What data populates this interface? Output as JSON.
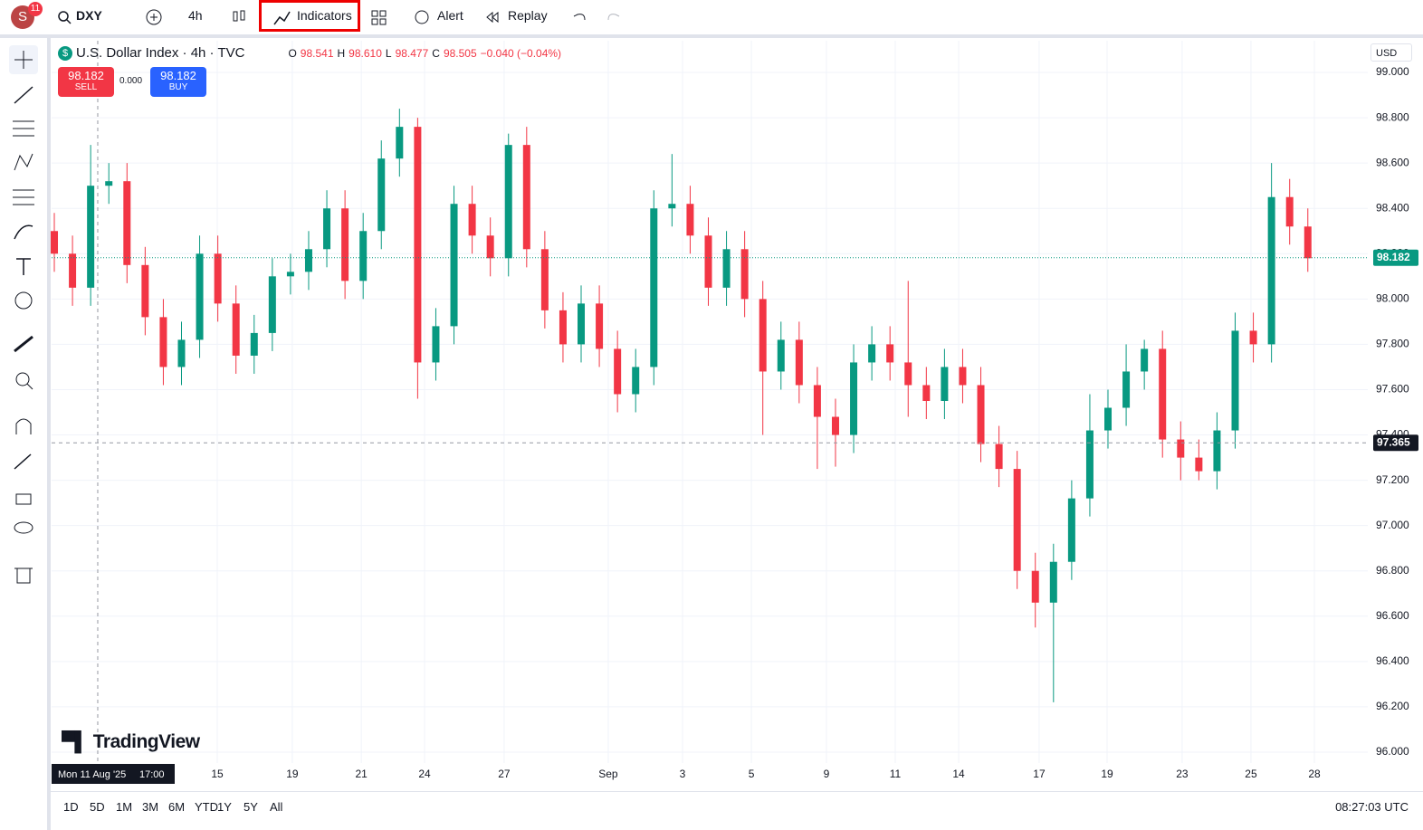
{
  "header": {
    "avatar": "S",
    "badge": "11",
    "symbol": "DXY",
    "interval": "4h",
    "indicators": "Indicators",
    "alert": "Alert",
    "replay": "Replay"
  },
  "legend": {
    "o_label": "O",
    "o": "98.541",
    "h_label": "H",
    "h": "98.610",
    "l_label": "L",
    "l": "98.477",
    "c_label": "C",
    "c": "98.505",
    "change": "−0.040 (−0.04%)"
  },
  "trade": {
    "sell_price": "98.182",
    "sell": "SELL",
    "spread": "0.000",
    "buy_price": "98.182",
    "buy": "BUY"
  },
  "currency": "USD",
  "watermark": "TradingView",
  "ranges": [
    "1D",
    "5D",
    "1M",
    "3M",
    "6M",
    "YTD",
    "1Y",
    "5Y",
    "All"
  ],
  "clock": "08:27:03 UTC",
  "chart_data": {
    "type": "candlestick",
    "title": "U.S. Dollar Index · 4h · TVC",
    "up_color": "#089981",
    "down_color": "#f23645",
    "open": [
      98.3,
      98.2,
      98.05,
      98.5,
      98.52,
      98.15,
      97.92,
      97.7,
      97.82,
      98.2,
      97.98,
      97.75,
      97.85,
      98.1,
      98.12,
      98.22,
      98.4,
      98.08,
      98.3,
      98.62,
      98.76,
      97.72,
      97.88,
      98.42,
      98.28,
      98.18,
      98.68,
      98.22,
      97.95,
      97.8,
      97.98,
      97.78,
      97.58,
      97.7,
      98.4,
      98.42,
      98.28,
      98.05,
      98.22,
      98.0,
      97.68,
      97.82,
      97.62,
      97.48,
      97.4,
      97.72,
      97.8,
      97.72,
      97.62,
      97.55,
      97.7,
      97.62,
      97.36,
      97.25,
      96.8,
      96.66,
      96.84,
      97.12,
      97.42,
      97.52,
      97.68,
      97.78,
      97.38,
      97.3,
      97.24,
      97.42,
      97.86,
      97.8,
      98.45,
      98.32
    ],
    "high": [
      98.38,
      98.28,
      98.68,
      98.6,
      98.6,
      98.23,
      98.0,
      97.9,
      98.28,
      98.28,
      98.06,
      97.93,
      98.18,
      98.2,
      98.3,
      98.48,
      98.48,
      98.38,
      98.7,
      98.84,
      98.8,
      97.96,
      98.5,
      98.5,
      98.36,
      98.73,
      98.76,
      98.3,
      98.03,
      98.06,
      98.06,
      97.86,
      97.78,
      98.48,
      98.64,
      98.5,
      98.36,
      98.3,
      98.3,
      98.08,
      97.9,
      97.9,
      97.7,
      97.56,
      97.8,
      97.88,
      97.88,
      98.08,
      97.7,
      97.78,
      97.78,
      97.7,
      97.44,
      97.33,
      96.88,
      96.92,
      97.2,
      97.58,
      97.6,
      97.8,
      97.82,
      97.86,
      97.46,
      97.38,
      97.5,
      97.94,
      97.94,
      98.6,
      98.53,
      98.4
    ],
    "low": [
      98.12,
      97.97,
      97.97,
      98.42,
      98.07,
      97.84,
      97.62,
      97.62,
      97.74,
      97.9,
      97.67,
      97.67,
      97.77,
      98.02,
      98.04,
      98.14,
      98.0,
      98.0,
      98.22,
      98.54,
      97.56,
      97.64,
      97.8,
      98.2,
      98.1,
      98.1,
      98.14,
      97.87,
      97.72,
      97.72,
      97.7,
      97.5,
      97.5,
      97.62,
      98.32,
      98.2,
      97.97,
      97.97,
      97.92,
      97.4,
      97.6,
      97.54,
      97.25,
      97.26,
      97.32,
      97.64,
      97.64,
      97.48,
      97.47,
      97.47,
      97.54,
      97.28,
      97.17,
      96.72,
      96.55,
      96.22,
      96.76,
      97.04,
      97.34,
      97.44,
      97.6,
      97.3,
      97.2,
      97.2,
      97.16,
      97.34,
      97.72,
      97.72,
      98.24,
      98.12
    ],
    "close": [
      98.2,
      98.05,
      98.5,
      98.52,
      98.15,
      97.92,
      97.7,
      97.82,
      98.2,
      97.98,
      97.75,
      97.85,
      98.1,
      98.12,
      98.22,
      98.4,
      98.08,
      98.3,
      98.62,
      98.76,
      97.72,
      97.88,
      98.42,
      98.28,
      98.18,
      98.68,
      98.22,
      97.95,
      97.8,
      97.98,
      97.78,
      97.58,
      97.7,
      98.4,
      98.42,
      98.28,
      98.05,
      98.22,
      98.0,
      97.68,
      97.82,
      97.62,
      97.48,
      97.4,
      97.72,
      97.8,
      97.72,
      97.62,
      97.55,
      97.7,
      97.62,
      97.36,
      97.25,
      96.8,
      96.66,
      96.84,
      97.12,
      97.42,
      97.52,
      97.68,
      97.78,
      97.38,
      97.3,
      97.24,
      97.42,
      97.86,
      97.8,
      98.45,
      98.32,
      98.18
    ],
    "xlim": [
      -0.15,
      72.3
    ],
    "xticks": [
      {
        "value": 8.97,
        "label": "15"
      },
      {
        "value": 13.1,
        "label": "19"
      },
      {
        "value": 16.9,
        "label": "21"
      },
      {
        "value": 20.38,
        "label": "24"
      },
      {
        "value": 24.76,
        "label": "27"
      },
      {
        "value": 30.49,
        "label": "Sep"
      },
      {
        "value": 34.58,
        "label": "3"
      },
      {
        "value": 38.37,
        "label": "5"
      },
      {
        "value": 42.5,
        "label": "9"
      },
      {
        "value": 46.29,
        "label": "11"
      },
      {
        "value": 49.78,
        "label": "14"
      },
      {
        "value": 54.21,
        "label": "17"
      },
      {
        "value": 57.95,
        "label": "19"
      },
      {
        "value": 62.08,
        "label": "23"
      },
      {
        "value": 65.87,
        "label": "25"
      },
      {
        "value": 69.36,
        "label": "28"
      }
    ],
    "ylim": [
      95.952,
      99.14
    ],
    "yticks": [
      {
        "value": 96.0,
        "label": "96.000"
      },
      {
        "value": 96.2,
        "label": "96.200"
      },
      {
        "value": 96.4,
        "label": "96.400"
      },
      {
        "value": 96.6,
        "label": "96.600"
      },
      {
        "value": 96.8,
        "label": "96.800"
      },
      {
        "value": 97.0,
        "label": "97.000"
      },
      {
        "value": 97.2,
        "label": "97.200"
      },
      {
        "value": 97.4,
        "label": "97.400"
      },
      {
        "value": 97.6,
        "label": "97.600"
      },
      {
        "value": 97.8,
        "label": "97.800"
      },
      {
        "value": 98.0,
        "label": "98.000"
      },
      {
        "value": 98.2,
        "label": "98.200"
      },
      {
        "value": 98.4,
        "label": "98.400"
      },
      {
        "value": 98.6,
        "label": "98.600"
      },
      {
        "value": 98.8,
        "label": "98.800"
      },
      {
        "value": 99.0,
        "label": "99.000"
      }
    ],
    "grid": true,
    "last_price": 98.182,
    "crosshair": {
      "x": 2.39,
      "y": 97.365,
      "date": "Mon 11 Aug '25",
      "time": "17:00"
    }
  }
}
